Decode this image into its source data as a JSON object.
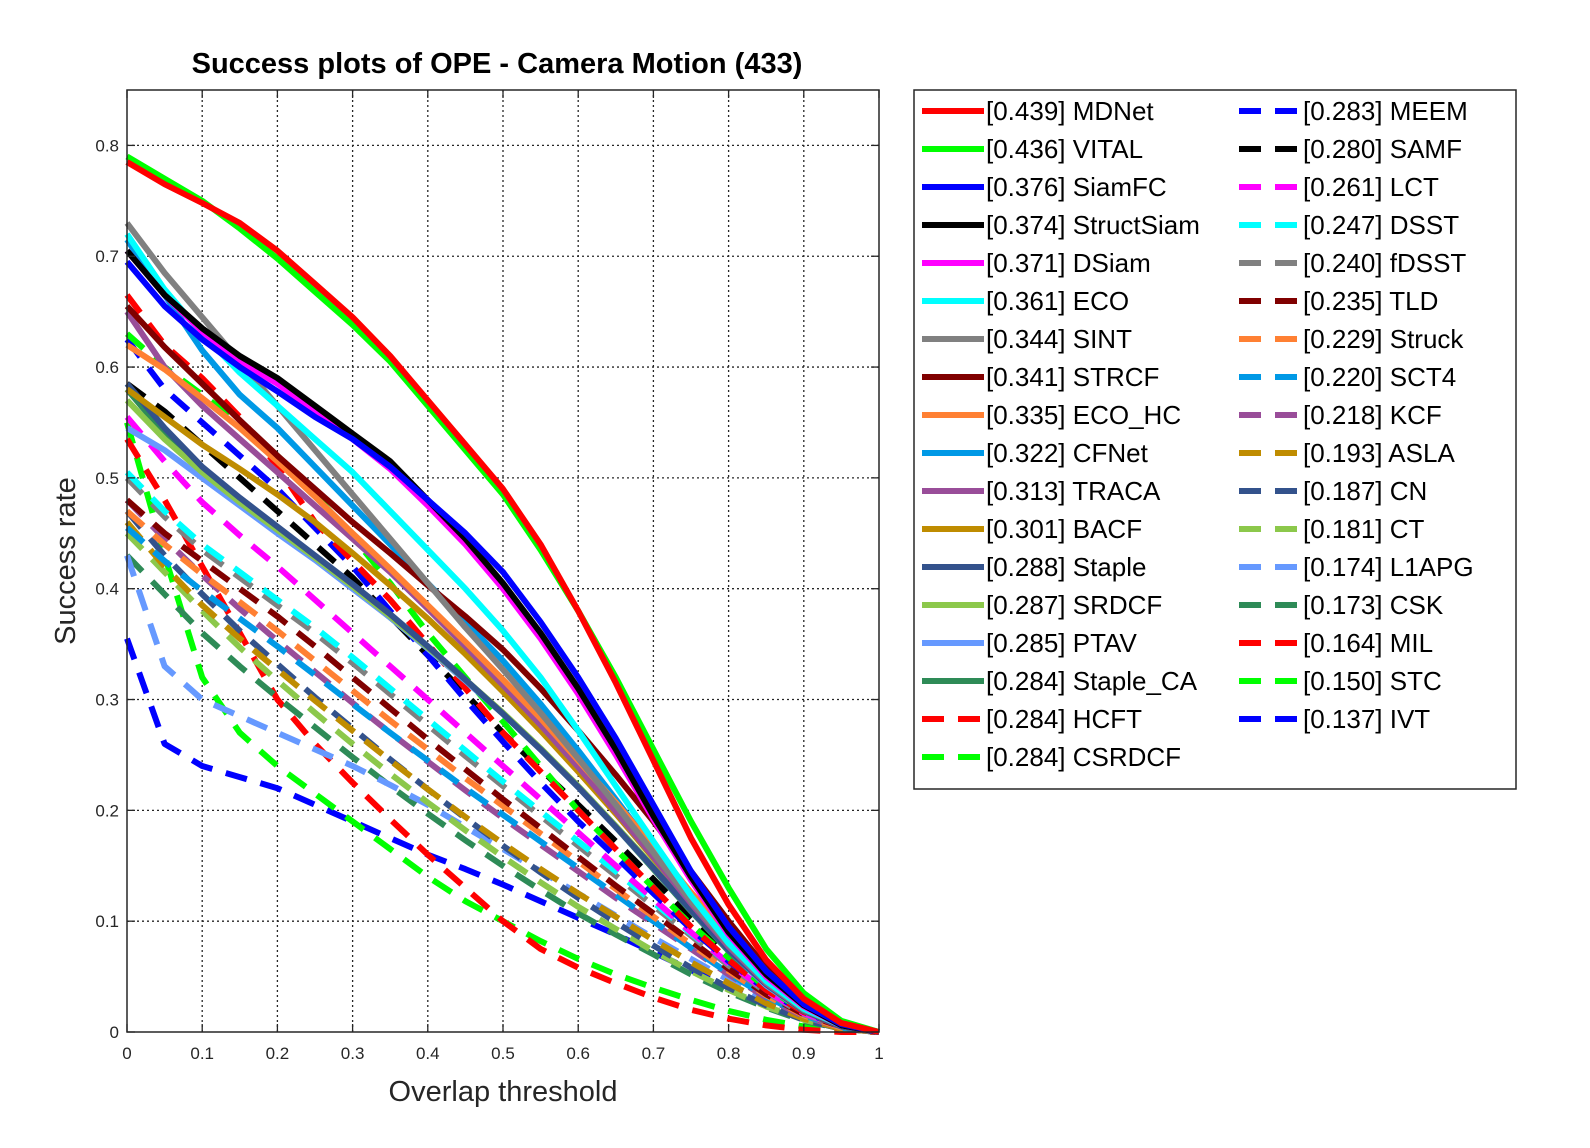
{
  "chart_data": {
    "type": "line",
    "title": "Success plots of OPE - Camera Motion (433)",
    "xlabel": "Overlap threshold",
    "ylabel": "Success rate",
    "xlim": [
      0,
      1
    ],
    "ylim": [
      0,
      0.85
    ],
    "grid": true,
    "legend_position": "right-outside",
    "x": [
      0,
      0.05,
      0.1,
      0.15,
      0.2,
      0.25,
      0.3,
      0.35,
      0.4,
      0.45,
      0.5,
      0.55,
      0.6,
      0.65,
      0.7,
      0.75,
      0.8,
      0.85,
      0.9,
      0.95,
      1
    ],
    "x_ticks": [
      "0",
      "0.1",
      "0.2",
      "0.3",
      "0.4",
      "0.5",
      "0.6",
      "0.7",
      "0.8",
      "0.9",
      "1"
    ],
    "y_ticks": [
      "0",
      "0.1",
      "0.2",
      "0.3",
      "0.4",
      "0.5",
      "0.6",
      "0.7",
      "0.8"
    ],
    "series": [
      {
        "name": "[0.439] MDNet",
        "color": "#ff0000",
        "dashed": false,
        "values": [
          0.785,
          0.765,
          0.748,
          0.73,
          0.705,
          0.675,
          0.645,
          0.61,
          0.57,
          0.53,
          0.49,
          0.44,
          0.38,
          0.315,
          0.245,
          0.175,
          0.115,
          0.065,
          0.03,
          0.008,
          0.0
        ]
      },
      {
        "name": "[0.436] VITAL",
        "color": "#00ff00",
        "dashed": false,
        "values": [
          0.79,
          0.77,
          0.75,
          0.725,
          0.698,
          0.668,
          0.638,
          0.605,
          0.565,
          0.525,
          0.485,
          0.435,
          0.38,
          0.32,
          0.255,
          0.19,
          0.13,
          0.075,
          0.035,
          0.01,
          0.0
        ]
      },
      {
        "name": "[0.376] SiamFC",
        "color": "#0000ff",
        "dashed": false,
        "values": [
          0.695,
          0.655,
          0.625,
          0.6,
          0.578,
          0.555,
          0.535,
          0.51,
          0.48,
          0.45,
          0.415,
          0.37,
          0.32,
          0.265,
          0.205,
          0.145,
          0.095,
          0.055,
          0.025,
          0.007,
          0.0
        ]
      },
      {
        "name": "[0.374] StructSiam",
        "color": "#000000",
        "dashed": false,
        "values": [
          0.705,
          0.665,
          0.635,
          0.61,
          0.59,
          0.565,
          0.54,
          0.515,
          0.48,
          0.445,
          0.405,
          0.36,
          0.31,
          0.255,
          0.195,
          0.14,
          0.09,
          0.052,
          0.024,
          0.006,
          0.0
        ]
      },
      {
        "name": "[0.371] DSiam",
        "color": "#ff00ff",
        "dashed": false,
        "values": [
          0.705,
          0.665,
          0.632,
          0.605,
          0.585,
          0.56,
          0.535,
          0.508,
          0.475,
          0.44,
          0.4,
          0.355,
          0.305,
          0.25,
          0.192,
          0.137,
          0.088,
          0.05,
          0.023,
          0.006,
          0.0
        ]
      },
      {
        "name": "[0.361] ECO",
        "color": "#00ffff",
        "dashed": false,
        "values": [
          0.72,
          0.67,
          0.63,
          0.595,
          0.565,
          0.535,
          0.505,
          0.47,
          0.435,
          0.4,
          0.362,
          0.32,
          0.272,
          0.222,
          0.172,
          0.123,
          0.08,
          0.046,
          0.021,
          0.006,
          0.0
        ]
      },
      {
        "name": "[0.344] SINT",
        "color": "#808080",
        "dashed": false,
        "values": [
          0.73,
          0.685,
          0.645,
          0.605,
          0.565,
          0.525,
          0.485,
          0.445,
          0.405,
          0.365,
          0.327,
          0.288,
          0.247,
          0.205,
          0.162,
          0.118,
          0.079,
          0.045,
          0.02,
          0.006,
          0.0
        ]
      },
      {
        "name": "[0.341] STRCF",
        "color": "#800000",
        "dashed": false,
        "values": [
          0.655,
          0.618,
          0.585,
          0.552,
          0.52,
          0.49,
          0.46,
          0.432,
          0.403,
          0.375,
          0.345,
          0.31,
          0.272,
          0.232,
          0.19,
          0.145,
          0.1,
          0.058,
          0.027,
          0.008,
          0.0
        ]
      },
      {
        "name": "[0.335] ECO_HC",
        "color": "#ff8033",
        "dashed": false,
        "values": [
          0.62,
          0.598,
          0.572,
          0.545,
          0.515,
          0.483,
          0.45,
          0.418,
          0.385,
          0.352,
          0.318,
          0.283,
          0.245,
          0.207,
          0.167,
          0.126,
          0.088,
          0.052,
          0.024,
          0.007,
          0.0
        ]
      },
      {
        "name": "[0.322] CFNet",
        "color": "#0099e6",
        "dashed": false,
        "values": [
          0.715,
          0.665,
          0.615,
          0.575,
          0.545,
          0.51,
          0.475,
          0.44,
          0.405,
          0.37,
          0.335,
          0.296,
          0.254,
          0.21,
          0.165,
          0.12,
          0.08,
          0.046,
          0.021,
          0.006,
          0.0
        ]
      },
      {
        "name": "[0.313] TRACA",
        "color": "#994d99",
        "dashed": false,
        "values": [
          0.65,
          0.6,
          0.565,
          0.535,
          0.505,
          0.475,
          0.445,
          0.415,
          0.382,
          0.348,
          0.313,
          0.277,
          0.239,
          0.199,
          0.158,
          0.116,
          0.077,
          0.044,
          0.02,
          0.006,
          0.0
        ]
      },
      {
        "name": "[0.301] BACF",
        "color": "#bf8c00",
        "dashed": false,
        "values": [
          0.58,
          0.555,
          0.53,
          0.508,
          0.485,
          0.46,
          0.432,
          0.403,
          0.373,
          0.341,
          0.307,
          0.272,
          0.235,
          0.197,
          0.157,
          0.117,
          0.079,
          0.046,
          0.021,
          0.006,
          0.0
        ]
      },
      {
        "name": "[0.288] Staple",
        "color": "#33528c",
        "dashed": false,
        "values": [
          0.585,
          0.545,
          0.51,
          0.482,
          0.456,
          0.43,
          0.404,
          0.377,
          0.348,
          0.318,
          0.287,
          0.255,
          0.221,
          0.185,
          0.148,
          0.11,
          0.074,
          0.043,
          0.019,
          0.005,
          0.0
        ]
      },
      {
        "name": "[0.287] SRDCF",
        "color": "#8cc84b",
        "dashed": false,
        "values": [
          0.57,
          0.535,
          0.505,
          0.478,
          0.453,
          0.428,
          0.402,
          0.375,
          0.347,
          0.318,
          0.288,
          0.256,
          0.222,
          0.186,
          0.149,
          0.111,
          0.075,
          0.043,
          0.019,
          0.005,
          0.0
        ]
      },
      {
        "name": "[0.285] PTAV",
        "color": "#6699ff",
        "dashed": false,
        "values": [
          0.545,
          0.525,
          0.5,
          0.475,
          0.45,
          0.426,
          0.4,
          0.374,
          0.346,
          0.317,
          0.287,
          0.255,
          0.221,
          0.185,
          0.148,
          0.11,
          0.074,
          0.042,
          0.019,
          0.005,
          0.0
        ]
      },
      {
        "name": "[0.284] Staple_CA",
        "color": "#2e8b57",
        "dashed": false,
        "values": [
          0.58,
          0.54,
          0.505,
          0.478,
          0.452,
          0.427,
          0.401,
          0.374,
          0.346,
          0.317,
          0.287,
          0.255,
          0.221,
          0.185,
          0.147,
          0.109,
          0.073,
          0.042,
          0.019,
          0.005,
          0.0
        ]
      },
      {
        "name": "[0.284] HCFT",
        "color": "#ff0000",
        "dashed": true,
        "values": [
          0.665,
          0.62,
          0.59,
          0.555,
          0.51,
          0.46,
          0.425,
          0.39,
          0.35,
          0.31,
          0.27,
          0.235,
          0.2,
          0.165,
          0.13,
          0.095,
          0.065,
          0.038,
          0.018,
          0.005,
          0.0
        ]
      },
      {
        "name": "[0.284] CSRDCF",
        "color": "#00ff00",
        "dashed": true,
        "values": [
          0.63,
          0.6,
          0.575,
          0.55,
          0.52,
          0.485,
          0.447,
          0.405,
          0.36,
          0.32,
          0.28,
          0.24,
          0.2,
          0.165,
          0.13,
          0.097,
          0.067,
          0.04,
          0.019,
          0.005,
          0.0
        ]
      },
      {
        "name": "[0.283] MEEM",
        "color": "#0000ff",
        "dashed": true,
        "values": [
          0.625,
          0.58,
          0.55,
          0.52,
          0.49,
          0.455,
          0.42,
          0.38,
          0.34,
          0.3,
          0.262,
          0.225,
          0.19,
          0.158,
          0.125,
          0.093,
          0.064,
          0.038,
          0.018,
          0.005,
          0.0
        ]
      },
      {
        "name": "[0.280] SAMF",
        "color": "#000000",
        "dashed": true,
        "values": [
          0.585,
          0.56,
          0.53,
          0.5,
          0.47,
          0.44,
          0.41,
          0.375,
          0.34,
          0.305,
          0.27,
          0.237,
          0.205,
          0.172,
          0.138,
          0.103,
          0.07,
          0.041,
          0.019,
          0.005,
          0.0
        ]
      },
      {
        "name": "[0.261] LCT",
        "color": "#ff00ff",
        "dashed": true,
        "values": [
          0.555,
          0.515,
          0.478,
          0.448,
          0.42,
          0.39,
          0.36,
          0.33,
          0.3,
          0.27,
          0.24,
          0.21,
          0.18,
          0.15,
          0.12,
          0.09,
          0.062,
          0.037,
          0.017,
          0.005,
          0.0
        ]
      },
      {
        "name": "[0.247] DSST",
        "color": "#00ffff",
        "dashed": true,
        "values": [
          0.505,
          0.47,
          0.44,
          0.415,
          0.39,
          0.365,
          0.338,
          0.31,
          0.282,
          0.254,
          0.226,
          0.199,
          0.172,
          0.145,
          0.117,
          0.089,
          0.062,
          0.037,
          0.017,
          0.005,
          0.0
        ]
      },
      {
        "name": "[0.240] fDSST",
        "color": "#808080",
        "dashed": true,
        "values": [
          0.5,
          0.465,
          0.435,
          0.41,
          0.385,
          0.36,
          0.333,
          0.305,
          0.277,
          0.249,
          0.222,
          0.195,
          0.168,
          0.141,
          0.114,
          0.087,
          0.06,
          0.036,
          0.016,
          0.005,
          0.0
        ]
      },
      {
        "name": "[0.235] TLD",
        "color": "#800000",
        "dashed": true,
        "values": [
          0.48,
          0.45,
          0.425,
          0.4,
          0.375,
          0.348,
          0.32,
          0.292,
          0.264,
          0.237,
          0.21,
          0.184,
          0.158,
          0.132,
          0.107,
          0.082,
          0.057,
          0.034,
          0.016,
          0.005,
          0.0
        ]
      },
      {
        "name": "[0.229] Struck",
        "color": "#ff8033",
        "dashed": true,
        "values": [
          0.47,
          0.44,
          0.413,
          0.388,
          0.362,
          0.335,
          0.308,
          0.281,
          0.255,
          0.229,
          0.204,
          0.179,
          0.154,
          0.129,
          0.104,
          0.079,
          0.055,
          0.033,
          0.015,
          0.004,
          0.0
        ]
      },
      {
        "name": "[0.220] SCT4",
        "color": "#0099e6",
        "dashed": true,
        "values": [
          0.455,
          0.425,
          0.398,
          0.373,
          0.348,
          0.322,
          0.296,
          0.27,
          0.245,
          0.22,
          0.196,
          0.172,
          0.148,
          0.124,
          0.1,
          0.076,
          0.053,
          0.032,
          0.015,
          0.004,
          0.0
        ]
      },
      {
        "name": "[0.218] KCF",
        "color": "#994d99",
        "dashed": true,
        "values": [
          0.48,
          0.445,
          0.412,
          0.382,
          0.353,
          0.325,
          0.297,
          0.27,
          0.244,
          0.218,
          0.193,
          0.169,
          0.145,
          0.121,
          0.098,
          0.075,
          0.052,
          0.031,
          0.014,
          0.004,
          0.0
        ]
      },
      {
        "name": "[0.193] ASLA",
        "color": "#bf8c00",
        "dashed": true,
        "values": [
          0.46,
          0.42,
          0.385,
          0.355,
          0.327,
          0.299,
          0.272,
          0.245,
          0.219,
          0.194,
          0.17,
          0.147,
          0.125,
          0.104,
          0.083,
          0.063,
          0.044,
          0.026,
          0.012,
          0.003,
          0.0
        ]
      },
      {
        "name": "[0.187] CN",
        "color": "#33528c",
        "dashed": true,
        "values": [
          0.47,
          0.43,
          0.395,
          0.362,
          0.332,
          0.302,
          0.274,
          0.246,
          0.219,
          0.193,
          0.168,
          0.144,
          0.121,
          0.099,
          0.078,
          0.058,
          0.04,
          0.024,
          0.011,
          0.003,
          0.0
        ]
      },
      {
        "name": "[0.181] CT",
        "color": "#8cc84b",
        "dashed": true,
        "values": [
          0.45,
          0.415,
          0.38,
          0.347,
          0.317,
          0.288,
          0.26,
          0.233,
          0.207,
          0.182,
          0.158,
          0.135,
          0.113,
          0.093,
          0.073,
          0.055,
          0.038,
          0.023,
          0.011,
          0.003,
          0.0
        ]
      },
      {
        "name": "[0.174] L1APG",
        "color": "#6699ff",
        "dashed": true,
        "values": [
          0.43,
          0.33,
          0.3,
          0.285,
          0.27,
          0.255,
          0.24,
          0.223,
          0.205,
          0.185,
          0.165,
          0.145,
          0.125,
          0.105,
          0.085,
          0.066,
          0.047,
          0.029,
          0.014,
          0.004,
          0.0
        ]
      },
      {
        "name": "[0.173] CSK",
        "color": "#2e8b57",
        "dashed": true,
        "values": [
          0.43,
          0.395,
          0.36,
          0.33,
          0.302,
          0.275,
          0.248,
          0.222,
          0.197,
          0.173,
          0.15,
          0.128,
          0.107,
          0.088,
          0.07,
          0.052,
          0.036,
          0.022,
          0.01,
          0.003,
          0.0
        ]
      },
      {
        "name": "[0.164] MIL",
        "color": "#ff0000",
        "dashed": true,
        "values": [
          0.535,
          0.48,
          0.42,
          0.36,
          0.3,
          0.26,
          0.225,
          0.192,
          0.16,
          0.13,
          0.1,
          0.075,
          0.058,
          0.044,
          0.031,
          0.02,
          0.012,
          0.006,
          0.002,
          0.0,
          0.0
        ]
      },
      {
        "name": "[0.150] STC",
        "color": "#00ff00",
        "dashed": true,
        "values": [
          0.55,
          0.43,
          0.32,
          0.27,
          0.24,
          0.215,
          0.19,
          0.165,
          0.14,
          0.118,
          0.1,
          0.082,
          0.066,
          0.052,
          0.04,
          0.029,
          0.019,
          0.011,
          0.005,
          0.001,
          0.0
        ]
      },
      {
        "name": "[0.137] IVT",
        "color": "#0000ff",
        "dashed": true,
        "values": [
          0.355,
          0.26,
          0.24,
          0.23,
          0.22,
          0.205,
          0.19,
          0.175,
          0.16,
          0.147,
          0.133,
          0.118,
          0.103,
          0.088,
          0.072,
          0.056,
          0.04,
          0.025,
          0.012,
          0.003,
          0.0
        ]
      }
    ]
  }
}
